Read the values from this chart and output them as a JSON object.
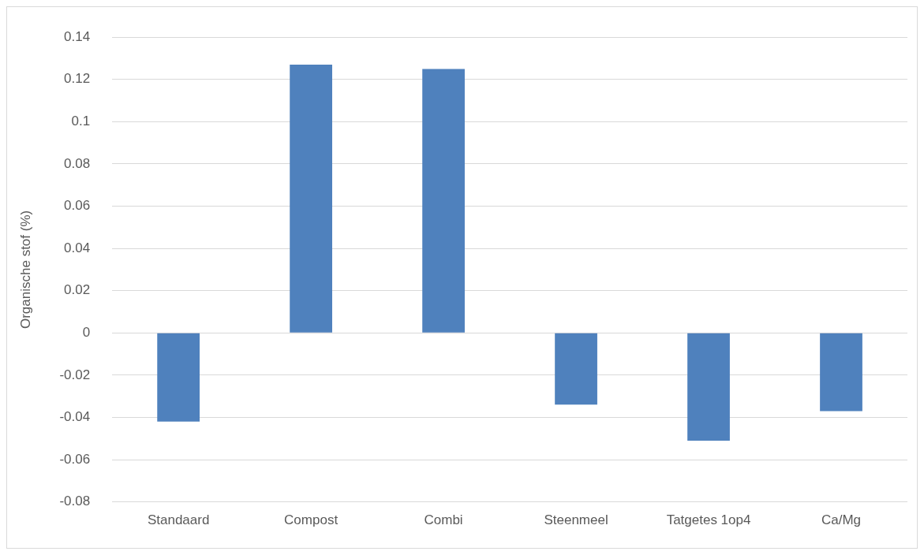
{
  "chart_data": {
    "type": "bar",
    "ylabel": "Organische stof (%)",
    "categories": [
      "Standaard",
      "Compost",
      "Combi",
      "Steenmeel",
      "Tatgetes 1op4",
      "Ca/Mg"
    ],
    "values": [
      -0.042,
      0.127,
      0.125,
      -0.034,
      -0.051,
      -0.037
    ],
    "color": "#4f81bd",
    "ylim": [
      -0.08,
      0.14
    ],
    "yticks": [
      -0.08,
      -0.06,
      -0.04,
      -0.02,
      0,
      0.02,
      0.04,
      0.06,
      0.08,
      0.1,
      0.12,
      0.14
    ],
    "grid": "y",
    "legend": false
  }
}
